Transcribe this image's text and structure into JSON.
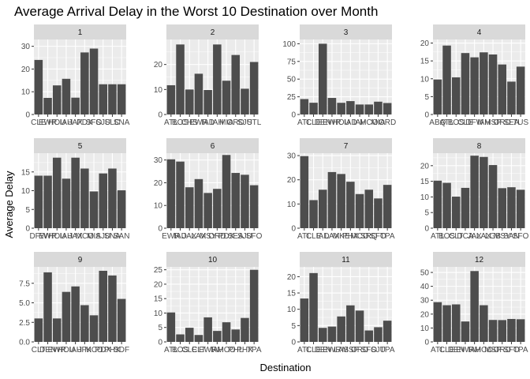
{
  "chart_data": {
    "type": "bar",
    "title": "Average Arrival Delay in the Worst 10 Destination over Month",
    "xlabel": "Destination",
    "ylabel": "Average Delay",
    "colors": {
      "bar": "#4d4d4d",
      "panel": "#ebebeb",
      "strip": "#d9d9d9",
      "grid": "#ffffff"
    },
    "facets": [
      {
        "label": "1",
        "ylim": [
          0,
          33
        ],
        "yticks": [
          0,
          10,
          20,
          30
        ],
        "yticklabels": [
          "0",
          "10",
          "20",
          "30"
        ],
        "categories": [
          "CLE",
          "EWR",
          "HOU",
          "IAH",
          "JAX",
          "PDX",
          "SFO",
          "SJU",
          "SLC",
          "SNA"
        ],
        "values": [
          24,
          7.3,
          12.8,
          15.7,
          7.4,
          27.3,
          29,
          13.3,
          13.3,
          13.3
        ]
      },
      {
        "label": "2",
        "ylim": [
          0,
          30
        ],
        "yticks": [
          0,
          10,
          20
        ],
        "yticklabels": [
          "0",
          "10",
          "20"
        ],
        "categories": [
          "ATL",
          "BOS",
          "CHS",
          "EWR",
          "IAD",
          "IAH",
          "MIA",
          "ORD",
          "SJU",
          "STL"
        ],
        "values": [
          11.7,
          28,
          10,
          16.3,
          9.8,
          28,
          13.5,
          23.8,
          10.3,
          21
        ]
      },
      {
        "label": "3",
        "ylim": [
          0,
          106
        ],
        "yticks": [
          0,
          25,
          50,
          75,
          100
        ],
        "yticklabels": [
          "0",
          "25",
          "50",
          "75",
          "100"
        ],
        "categories": [
          "ATL",
          "CLE",
          "DEN",
          "EWR",
          "HOU",
          "IAD",
          "IAH",
          "MCO",
          "MIA",
          "ORD"
        ],
        "values": [
          21.8,
          16.6,
          100,
          23.4,
          16.5,
          18.9,
          14.1,
          14.1,
          18.1,
          16.2
        ]
      },
      {
        "label": "4",
        "ylim": [
          0,
          21
        ],
        "yticks": [
          0,
          5,
          10,
          15,
          20
        ],
        "yticklabels": [
          "0",
          "5",
          "10",
          "15",
          "20"
        ],
        "categories": [
          "ABQ",
          "ATL",
          "BOS",
          "CLE",
          "DFW",
          "IAH",
          "MSP",
          "ORD",
          "SEA",
          "TUS"
        ],
        "values": [
          9.8,
          19.3,
          10.4,
          17.2,
          16,
          17.4,
          16.8,
          14,
          9.2,
          13.4
        ]
      },
      {
        "label": "5",
        "ylim": [
          0,
          20
        ],
        "yticks": [
          0,
          5,
          10,
          15
        ],
        "yticklabels": [
          "0",
          "5",
          "10",
          "15"
        ],
        "categories": [
          "DFW",
          "EWR",
          "HOU",
          "IAH",
          "JAX",
          "MCO",
          "MIA",
          "SJU",
          "SNA",
          "SAN"
        ],
        "values": [
          14,
          14,
          18.8,
          13.2,
          18.8,
          15.9,
          9.8,
          14.6,
          15.9,
          10.1
        ]
      },
      {
        "label": "6",
        "ylim": [
          0,
          33
        ],
        "yticks": [
          0,
          10,
          20,
          30
        ],
        "yticklabels": [
          "0",
          "10",
          "20",
          "30"
        ],
        "categories": [
          "EWR",
          "IAD",
          "JAX",
          "LAX",
          "MSY",
          "ORD",
          "PDX",
          "SEA",
          "SJU",
          "SFO"
        ],
        "values": [
          30.3,
          29.3,
          18,
          21.6,
          15.5,
          17.3,
          32.2,
          24.3,
          23.5,
          18.9
        ]
      },
      {
        "label": "7",
        "ylim": [
          0,
          31
        ],
        "yticks": [
          0,
          10,
          20,
          30
        ],
        "yticklabels": [
          "0",
          "10",
          "20",
          "30"
        ],
        "categories": [
          "ATL",
          "CLE",
          "IAD",
          "LAX",
          "MKE",
          "PHX",
          "MCO",
          "SRQ",
          "SFO",
          "TPA"
        ],
        "values": [
          29.8,
          11.6,
          15.9,
          23.2,
          22.4,
          19.2,
          14.1,
          15.9,
          12.3,
          17.9
        ]
      },
      {
        "label": "8",
        "ylim": [
          0,
          24
        ],
        "yticks": [
          0,
          5,
          10,
          15,
          20
        ],
        "yticklabels": [
          "0",
          "5",
          "10",
          "15",
          "20"
        ],
        "categories": [
          "ATL",
          "BOS",
          "CLT",
          "DCA",
          "JAX",
          "LAX",
          "LGB",
          "MSY",
          "SAN",
          "SFO"
        ],
        "values": [
          15.2,
          14.5,
          10.1,
          12.9,
          23.2,
          22.8,
          20.2,
          12.8,
          13.1,
          12.3
        ]
      },
      {
        "label": "9",
        "ylim": [
          0,
          9.6
        ],
        "yticks": [
          0,
          2.5,
          5,
          7.5
        ],
        "yticklabels": [
          "0.0",
          "2.5",
          "5.0",
          "7.5"
        ],
        "categories": [
          "CLT",
          "DEN",
          "EWR",
          "HOU",
          "IAH",
          "JFK",
          "MCO",
          "PDX",
          "PHX",
          "SDF"
        ],
        "values": [
          3,
          8.9,
          3,
          6.4,
          7.1,
          4.7,
          3.4,
          9.1,
          8.5,
          5.5
        ]
      },
      {
        "label": "10",
        "ylim": [
          0,
          26
        ],
        "yticks": [
          0,
          5,
          10,
          15,
          20,
          25
        ],
        "yticklabels": [
          "0",
          "5",
          "10",
          "15",
          "20",
          "25"
        ],
        "categories": [
          "ATL",
          "BOS",
          "CLE",
          "CLT",
          "EWR",
          "IAH",
          "MCO",
          "PHL",
          "PHX",
          "TPA"
        ],
        "values": [
          10.2,
          2.6,
          4.9,
          2.4,
          8.5,
          3.8,
          6.8,
          4.3,
          8.3,
          25
        ]
      },
      {
        "label": "11",
        "ylim": [
          0,
          23
        ],
        "yticks": [
          0,
          5,
          10,
          15,
          20
        ],
        "yticklabels": [
          "0",
          "5",
          "10",
          "15",
          "20"
        ],
        "categories": [
          "ATL",
          "CLE",
          "DEN",
          "EWR",
          "LAS",
          "MSP",
          "ORD",
          "SFO",
          "SJU",
          "TPA"
        ],
        "values": [
          13.3,
          21.1,
          4.3,
          4.7,
          7.8,
          11.2,
          9.6,
          3.5,
          4.5,
          6.5
        ]
      },
      {
        "label": "12",
        "ylim": [
          0,
          54
        ],
        "yticks": [
          0,
          10,
          20,
          30,
          40,
          50
        ],
        "yticklabels": [
          "0",
          "10",
          "20",
          "30",
          "40",
          "50"
        ],
        "categories": [
          "ATL",
          "CLE",
          "DEN",
          "EWR",
          "IAH",
          "MCO",
          "MSP",
          "ORD",
          "SFO",
          "TPA"
        ],
        "values": [
          28.6,
          26.4,
          27,
          14.7,
          51,
          26.4,
          15.8,
          15.7,
          16.5,
          16.3
        ]
      }
    ]
  }
}
